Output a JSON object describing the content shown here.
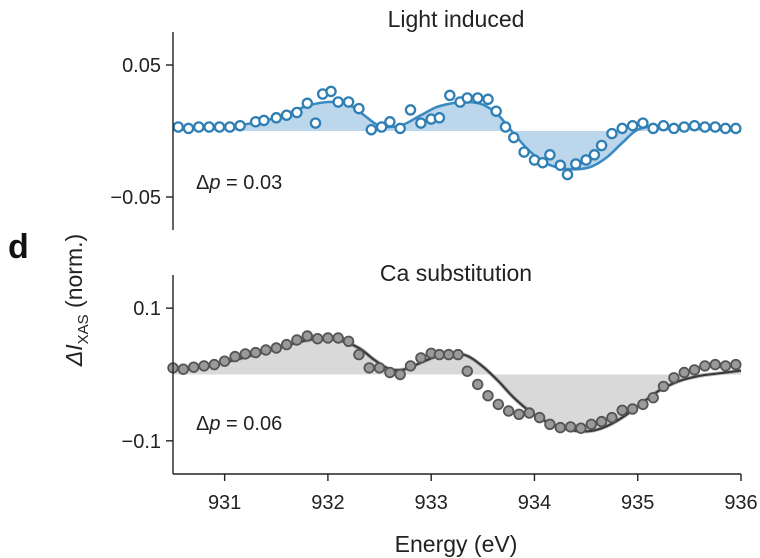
{
  "figure": {
    "panel_letter": "d",
    "ylabel_main": "ΔI",
    "ylabel_sub": "XAS",
    "ylabel_suffix": " (norm.)",
    "xlabel": "Energy (eV)"
  },
  "chart_data": [
    {
      "type": "scatter",
      "title": "Light induced",
      "annotation_prefix": "Δ",
      "annotation_var": "p",
      "annotation_value": " = 0.03",
      "xlim": [
        930.5,
        936.0
      ],
      "ylim": [
        -0.075,
        0.075
      ],
      "yticks": [
        0.05,
        -0.05
      ],
      "ytick_labels": [
        "0.05",
        "−0.05"
      ],
      "colors": {
        "marker": "#2f7fb4",
        "line": "#3a8bc2",
        "fill": "#bcd7ec"
      },
      "x": [
        930.55,
        930.65,
        930.75,
        930.85,
        930.95,
        931.05,
        931.15,
        931.3,
        931.38,
        931.5,
        931.6,
        931.7,
        931.8,
        931.88,
        931.95,
        932.03,
        932.1,
        932.2,
        932.3,
        932.42,
        932.52,
        932.6,
        932.7,
        932.8,
        932.9,
        933.0,
        933.08,
        933.18,
        933.28,
        933.35,
        933.45,
        933.55,
        933.63,
        933.72,
        933.8,
        933.9,
        934.0,
        934.08,
        934.15,
        934.25,
        934.32,
        934.4,
        934.5,
        934.58,
        934.65,
        934.75,
        934.85,
        934.95,
        935.05,
        935.15,
        935.25,
        935.35,
        935.45,
        935.55,
        935.65,
        935.75,
        935.85,
        935.95
      ],
      "y": [
        0.003,
        0.002,
        0.003,
        0.003,
        0.003,
        0.003,
        0.004,
        0.007,
        0.008,
        0.01,
        0.012,
        0.014,
        0.021,
        0.006,
        0.028,
        0.03,
        0.022,
        0.022,
        0.017,
        0.001,
        0.003,
        0.007,
        0.002,
        0.016,
        0.006,
        0.009,
        0.01,
        0.027,
        0.022,
        0.025,
        0.025,
        0.024,
        0.015,
        0.003,
        -0.005,
        -0.016,
        -0.022,
        -0.024,
        -0.018,
        -0.026,
        -0.033,
        -0.025,
        -0.022,
        -0.018,
        -0.011,
        -0.002,
        0.002,
        0.004,
        0.006,
        0.002,
        0.004,
        0.002,
        0.003,
        0.004,
        0.003,
        0.003,
        0.002,
        0.002
      ],
      "fit_x": [
        930.5,
        930.8,
        931.1,
        931.4,
        931.6,
        931.8,
        932.0,
        932.2,
        932.35,
        932.5,
        932.7,
        932.9,
        933.05,
        933.2,
        933.35,
        933.5,
        933.65,
        933.8,
        933.95,
        934.1,
        934.25,
        934.4,
        934.55,
        934.7,
        934.85,
        935.0,
        935.2,
        935.4,
        935.6,
        935.8,
        936.0
      ],
      "fit_y": [
        0.001,
        0.002,
        0.004,
        0.008,
        0.013,
        0.019,
        0.022,
        0.02,
        0.012,
        0.004,
        0.004,
        0.012,
        0.018,
        0.021,
        0.022,
        0.02,
        0.012,
        -0.002,
        -0.015,
        -0.024,
        -0.028,
        -0.029,
        -0.027,
        -0.02,
        -0.009,
        0.001,
        0.004,
        0.003,
        0.002,
        0.001,
        0.0
      ]
    },
    {
      "type": "scatter",
      "title": "Ca substitution",
      "annotation_prefix": "Δ",
      "annotation_var": "p",
      "annotation_value": " = 0.06",
      "xlim": [
        930.5,
        936.0
      ],
      "ylim": [
        -0.15,
        0.15
      ],
      "yticks": [
        0.1,
        -0.1
      ],
      "ytick_labels": [
        "0.1",
        "−0.1"
      ],
      "xticks": [
        931,
        932,
        933,
        934,
        935,
        936
      ],
      "xtick_labels": [
        "931",
        "932",
        "933",
        "934",
        "935",
        "936"
      ],
      "colors": {
        "marker_fill": "#9a9a9a",
        "marker_edge": "#555555",
        "line": "#3a3a3a",
        "line2": "#888888",
        "fill": "#d9d9d9"
      },
      "x": [
        930.5,
        930.6,
        930.7,
        930.8,
        930.9,
        931.0,
        931.1,
        931.2,
        931.3,
        931.4,
        931.5,
        931.6,
        931.7,
        931.8,
        931.9,
        932.0,
        932.1,
        932.2,
        932.3,
        932.4,
        932.5,
        932.6,
        932.7,
        932.8,
        932.9,
        933.0,
        933.08,
        933.17,
        933.26,
        933.35,
        933.45,
        933.55,
        933.65,
        933.75,
        933.85,
        933.95,
        934.05,
        934.15,
        934.25,
        934.35,
        934.45,
        934.55,
        934.65,
        934.75,
        934.85,
        934.95,
        935.05,
        935.15,
        935.25,
        935.35,
        935.45,
        935.55,
        935.65,
        935.75,
        935.85,
        935.95
      ],
      "y": [
        0.01,
        0.008,
        0.011,
        0.013,
        0.015,
        0.02,
        0.027,
        0.031,
        0.033,
        0.037,
        0.04,
        0.045,
        0.052,
        0.058,
        0.054,
        0.055,
        0.055,
        0.05,
        0.03,
        0.01,
        0.01,
        0.003,
        0.0,
        0.013,
        0.025,
        0.032,
        0.03,
        0.03,
        0.03,
        0.005,
        -0.015,
        -0.032,
        -0.045,
        -0.055,
        -0.06,
        -0.058,
        -0.065,
        -0.075,
        -0.08,
        -0.079,
        -0.081,
        -0.075,
        -0.071,
        -0.065,
        -0.054,
        -0.052,
        -0.045,
        -0.035,
        -0.018,
        -0.005,
        0.003,
        0.007,
        0.013,
        0.015,
        0.013,
        0.015
      ],
      "fit_x": [
        930.5,
        930.8,
        931.1,
        931.4,
        931.7,
        931.9,
        932.1,
        932.3,
        932.45,
        932.6,
        932.75,
        932.9,
        933.05,
        933.2,
        933.35,
        933.5,
        933.65,
        933.8,
        933.95,
        934.1,
        934.25,
        934.4,
        934.55,
        934.7,
        934.85,
        935.0,
        935.2,
        935.4,
        935.6,
        935.8,
        936.0
      ],
      "fit_y": [
        0.008,
        0.012,
        0.022,
        0.035,
        0.048,
        0.054,
        0.052,
        0.04,
        0.022,
        0.008,
        0.008,
        0.018,
        0.027,
        0.032,
        0.028,
        0.012,
        -0.01,
        -0.035,
        -0.055,
        -0.07,
        -0.08,
        -0.085,
        -0.085,
        -0.078,
        -0.065,
        -0.048,
        -0.025,
        -0.01,
        -0.002,
        0.002,
        0.006
      ]
    }
  ]
}
